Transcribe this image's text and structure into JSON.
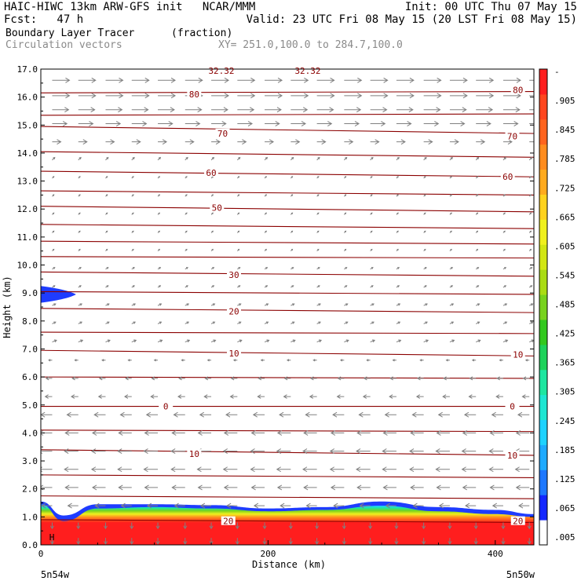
{
  "header": {
    "line1_left": "HAIC-HIWC 13km ARW-GFS init   NCAR/MMM",
    "line1_right": "Init: 00 UTC Thu 07 May 15",
    "line2_left": "Fcst:   47 h",
    "line2_right": "Valid: 23 UTC Fri 08 May 15 (20 LST Fri 08 May 15)",
    "field_name": "Boundary Layer Tracer",
    "field_units": "(fraction)",
    "vector_name": "Circulation vectors",
    "xy_text": "XY= 251.0,100.0 to 284.7,100.0"
  },
  "axes": {
    "ylabel": "Height (km)",
    "xlabel": "Distance (km)",
    "left_endpoint": "5n54w",
    "right_endpoint": "5n50w",
    "h_marker": "H",
    "top_stub_labels": [
      "32.32",
      "32.32"
    ]
  },
  "colors": {
    "contour": "#8b0000",
    "vector": "#808080",
    "blue": "#1e3cff"
  },
  "chart_data": {
    "type": "heatmap",
    "title": "Boundary Layer Tracer",
    "xlabel": "Distance (km)",
    "ylabel": "Height (km)",
    "xlim": [
      0,
      434
    ],
    "ylim": [
      0,
      17
    ],
    "x_ticks": [
      0,
      200,
      400
    ],
    "y_ticks": [
      0.0,
      1.0,
      2.0,
      3.0,
      4.0,
      5.0,
      6.0,
      7.0,
      8.0,
      9.0,
      10.0,
      11.0,
      12.0,
      13.0,
      14.0,
      15.0,
      16.0,
      17.0
    ],
    "colorbar": {
      "labels": [
        ".005",
        ".065",
        ".125",
        ".185",
        ".245",
        ".305",
        ".365",
        ".425",
        ".485",
        ".545",
        ".605",
        ".665",
        ".725",
        ".785",
        ".845",
        ".905",
        "-"
      ],
      "colors": [
        "#ffffff",
        "#1428ff",
        "#1e78ff",
        "#1eaaff",
        "#1ed2ff",
        "#1ee6d2",
        "#1ee6a0",
        "#1ed25a",
        "#32c81e",
        "#78d21e",
        "#aadc14",
        "#d2e614",
        "#f0f01e",
        "#ffd21e",
        "#ffaa1e",
        "#ff8c1e",
        "#ff641e",
        "#ff461e",
        "#ff1e1e"
      ]
    },
    "tracer_profile": [
      {
        "x": 0,
        "top": 1.45,
        "blue_top": 1.55
      },
      {
        "x": 20,
        "top": 0.85,
        "blue_top": 1.05
      },
      {
        "x": 50,
        "top": 1.3,
        "blue_top": 1.45
      },
      {
        "x": 100,
        "top": 1.35,
        "blue_top": 1.45
      },
      {
        "x": 150,
        "top": 1.3,
        "blue_top": 1.42
      },
      {
        "x": 200,
        "top": 1.2,
        "blue_top": 1.3
      },
      {
        "x": 250,
        "top": 1.25,
        "blue_top": 1.35
      },
      {
        "x": 300,
        "top": 1.4,
        "blue_top": 1.55
      },
      {
        "x": 350,
        "top": 1.2,
        "blue_top": 1.35
      },
      {
        "x": 400,
        "top": 1.1,
        "blue_top": 1.25
      },
      {
        "x": 434,
        "top": 1.0,
        "blue_top": 1.1
      }
    ],
    "upper_blue_patch": {
      "x_end": 31,
      "y_center": 8.95,
      "half_height": 0.3
    },
    "contours": [
      {
        "label": "80",
        "y_left": 16.15,
        "y_right": 16.2,
        "label_positions": [
          [
            135,
            16.1
          ],
          [
            420,
            16.25
          ]
        ]
      },
      {
        "label": "",
        "y_left": 15.35,
        "y_right": 15.4,
        "label_positions": []
      },
      {
        "label": "70",
        "y_left": 14.95,
        "y_right": 14.7,
        "label_positions": [
          [
            160,
            14.7
          ],
          [
            415,
            14.6
          ]
        ]
      },
      {
        "label": "",
        "y_left": 14.05,
        "y_right": 13.85,
        "label_positions": []
      },
      {
        "label": "60",
        "y_left": 13.35,
        "y_right": 13.15,
        "label_positions": [
          [
            150,
            13.3
          ],
          [
            411,
            13.15
          ]
        ]
      },
      {
        "label": "",
        "y_left": 12.65,
        "y_right": 12.5,
        "label_positions": []
      },
      {
        "label": "50",
        "y_left": 12.1,
        "y_right": 11.9,
        "label_positions": [
          [
            155,
            12.05
          ]
        ]
      },
      {
        "label": "",
        "y_left": 11.45,
        "y_right": 11.3,
        "label_positions": []
      },
      {
        "label": "",
        "y_left": 10.85,
        "y_right": 10.75,
        "label_positions": []
      },
      {
        "label": "",
        "y_left": 10.3,
        "y_right": 10.25,
        "label_positions": []
      },
      {
        "label": "30",
        "y_left": 9.75,
        "y_right": 9.6,
        "label_positions": [
          [
            170,
            9.65
          ]
        ]
      },
      {
        "label": "",
        "y_left": 9.05,
        "y_right": 8.95,
        "label_positions": []
      },
      {
        "label": "20",
        "y_left": 8.45,
        "y_right": 8.3,
        "label_positions": [
          [
            170,
            8.35
          ]
        ]
      },
      {
        "label": "",
        "y_left": 7.6,
        "y_right": 7.55,
        "label_positions": []
      },
      {
        "label": "10",
        "y_left": 6.95,
        "y_right": 6.75,
        "label_positions": [
          [
            170,
            6.85
          ],
          [
            420,
            6.8
          ]
        ]
      },
      {
        "label": "",
        "y_left": 6.0,
        "y_right": 5.95,
        "label_positions": []
      },
      {
        "label": "0",
        "y_left": 4.95,
        "y_right": 4.95,
        "label_positions": [
          [
            110,
            4.95
          ],
          [
            415,
            4.95
          ]
        ]
      },
      {
        "label": "",
        "y_left": 4.1,
        "y_right": 4.05,
        "label_positions": []
      },
      {
        "label": "10",
        "y_left": 3.4,
        "y_right": 3.2,
        "label_positions": [
          [
            135,
            3.25
          ],
          [
            415,
            3.2
          ]
        ]
      },
      {
        "label": "",
        "y_left": 2.5,
        "y_right": 2.4,
        "label_positions": []
      },
      {
        "label": "",
        "y_left": 1.75,
        "y_right": 1.65,
        "label_positions": []
      },
      {
        "label": "20",
        "y_left": 0.9,
        "y_right": 0.8,
        "label_positions": [
          [
            165,
            0.85
          ],
          [
            420,
            0.85
          ]
        ]
      }
    ],
    "wind_levels": [
      {
        "y": 16.6,
        "u": 1.0,
        "w": 0.0
      },
      {
        "y": 16.05,
        "u": 1.0,
        "w": 0.0
      },
      {
        "y": 15.55,
        "u": 0.95,
        "w": 0.0
      },
      {
        "y": 15.05,
        "u": 0.85,
        "w": 0.0
      },
      {
        "y": 14.4,
        "u": 0.5,
        "w": 0.0
      },
      {
        "y": 13.75,
        "u": 0.15,
        "w": 0.15
      },
      {
        "y": 13.1,
        "u": 0.1,
        "w": 0.1
      },
      {
        "y": 12.45,
        "u": 0.1,
        "w": 0.1
      },
      {
        "y": 11.8,
        "u": 0.1,
        "w": 0.1
      },
      {
        "y": 11.15,
        "u": 0.1,
        "w": 0.1
      },
      {
        "y": 10.5,
        "u": 0.1,
        "w": 0.1
      },
      {
        "y": 9.85,
        "u": 0.15,
        "w": 0.1
      },
      {
        "y": 9.2,
        "u": 0.15,
        "w": 0.1
      },
      {
        "y": 8.55,
        "u": 0.2,
        "w": 0.1
      },
      {
        "y": 7.9,
        "u": 0.2,
        "w": 0.1
      },
      {
        "y": 7.25,
        "u": 0.25,
        "w": 0.1
      },
      {
        "y": 6.6,
        "u": -0.2,
        "w": 0.0
      },
      {
        "y": 5.95,
        "u": -0.35,
        "w": 0.0
      },
      {
        "y": 5.3,
        "u": -0.4,
        "w": 0.0
      },
      {
        "y": 4.65,
        "u": -0.65,
        "w": 0.0
      },
      {
        "y": 4.0,
        "u": -0.75,
        "w": 0.0
      },
      {
        "y": 3.35,
        "u": -0.8,
        "w": 0.0
      },
      {
        "y": 2.7,
        "u": -0.8,
        "w": 0.0
      },
      {
        "y": 2.05,
        "u": -0.75,
        "w": 0.0
      },
      {
        "y": 1.4,
        "u": -0.6,
        "w": 0.0
      },
      {
        "y": 0.8,
        "u": 0.0,
        "w": -0.35
      },
      {
        "y": 0.25,
        "u": 0.0,
        "w": -0.35
      }
    ],
    "wind_columns": [
      10,
      33,
      57,
      80,
      103,
      127,
      150,
      173,
      197,
      220,
      243,
      267,
      290,
      313,
      337,
      360,
      383,
      407,
      430
    ]
  }
}
